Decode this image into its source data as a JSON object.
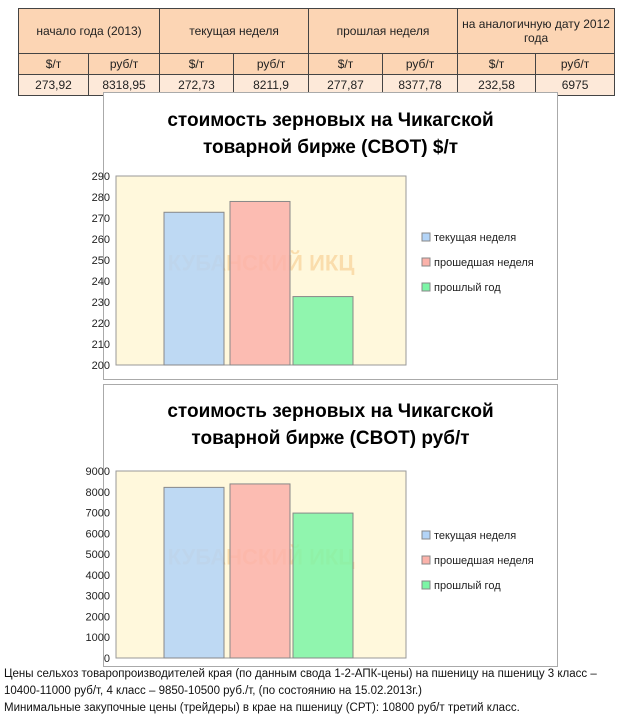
{
  "table": {
    "groups": [
      "начало года (2013)",
      "текущая неделя",
      "прошлая неделя",
      "на аналогичную дату 2012 года"
    ],
    "units": [
      "$/т",
      "руб/т",
      "$/т",
      "руб/т",
      "$/т",
      "руб/т",
      "$/т",
      "руб/т"
    ],
    "values": [
      "273,92",
      "8318,95",
      "272,73",
      "8211,9",
      "277,87",
      "8377,78",
      "232,58",
      "6975"
    ]
  },
  "watermark": "КУБАНСКИЙ ИКЦ",
  "chart_data": [
    {
      "type": "bar",
      "title_line1": "стоимость зерновых на Чикагской",
      "title_line2": "товарной бирже (CBOT) $/т",
      "ylim": [
        200,
        290
      ],
      "yticks": [
        200,
        210,
        220,
        230,
        240,
        250,
        260,
        270,
        280,
        290
      ],
      "series": [
        {
          "name": "текущая неделя",
          "value": 272.73,
          "color": "#b3d4f7"
        },
        {
          "name": "прошедшая неделя",
          "value": 277.87,
          "color": "#fbb2aa"
        },
        {
          "name": "прошлый год",
          "value": 232.58,
          "color": "#7cf5a6"
        }
      ],
      "legend": "right",
      "plot_bg": "#fff8dc"
    },
    {
      "type": "bar",
      "title_line1": "стоимость зерновых на Чикагской",
      "title_line2": "товарной бирже (CBOT) руб/т",
      "ylim": [
        0,
        9000
      ],
      "yticks": [
        0,
        1000,
        2000,
        3000,
        4000,
        5000,
        6000,
        7000,
        8000,
        9000
      ],
      "series": [
        {
          "name": "текущая неделя",
          "value": 8211.9,
          "color": "#b3d4f7"
        },
        {
          "name": "прошедшая неделя",
          "value": 8377.78,
          "color": "#fbb2aa"
        },
        {
          "name": "прошлый год",
          "value": 6975,
          "color": "#7cf5a6"
        }
      ],
      "legend": "right",
      "plot_bg": "#fff8dc"
    }
  ],
  "notes": [
    "Цены сельхоз товаропроизводителей края (по данным свода 1-2-АПК-цены) на пшеницу на пшеницу 3 класс –",
    "10400-11000 руб/т, 4 класс – 9850-10500 руб./т, (по состоянию на 15.02.2013г.)",
    "Минимальные закупочные цены (трейдеры) в крае на пшеницу (СРТ): 10800 руб/т третий класс."
  ]
}
